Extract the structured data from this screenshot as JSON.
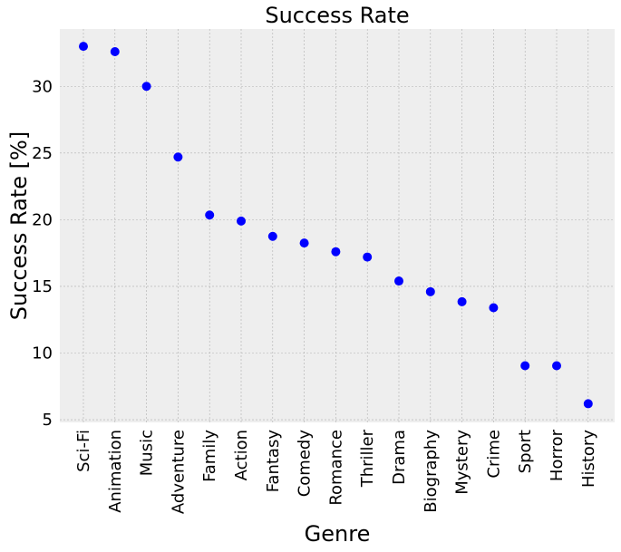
{
  "chart_data": {
    "type": "scatter",
    "title": "Success Rate",
    "xlabel": "Genre",
    "ylabel": "Success Rate [%]",
    "categories": [
      "Sci-Fi",
      "Animation",
      "Music",
      "Adventure",
      "Family",
      "Action",
      "Fantasy",
      "Comedy",
      "Romance",
      "Thriller",
      "Drama",
      "Biography",
      "Mystery",
      "Crime",
      "Sport",
      "Horror",
      "History"
    ],
    "values": [
      33.0,
      32.6,
      30.0,
      24.7,
      20.35,
      19.9,
      18.75,
      18.25,
      17.6,
      17.2,
      15.4,
      14.6,
      13.85,
      13.4,
      9.05,
      9.05,
      6.2
    ],
    "ylim": [
      4.8,
      34.3
    ],
    "yticks": [
      5,
      10,
      15,
      20,
      25,
      30
    ],
    "grid": true,
    "colors": {
      "marker": "#0000ff",
      "background": "#eeeeee",
      "grid": "#b0b0b0"
    }
  }
}
